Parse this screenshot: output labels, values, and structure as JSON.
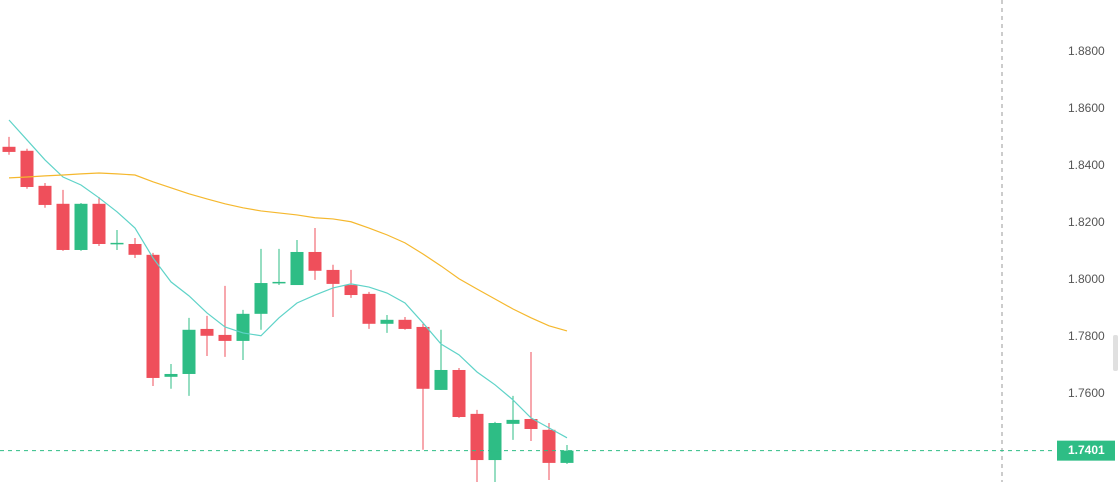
{
  "chart_data": {
    "type": "candlestick",
    "open": [
      1.8467,
      1.8453,
      1.833,
      1.8267,
      1.8105,
      1.8267,
      1.8126,
      1.8126,
      1.8088,
      1.766,
      1.767,
      1.7828,
      1.7807,
      1.7786,
      1.7881,
      1.7989,
      1.7982,
      1.8098,
      1.8035,
      1.7982,
      1.7951,
      1.7846,
      1.786,
      1.7835,
      1.7614,
      1.7684,
      1.753,
      1.7368,
      1.7495,
      1.7512,
      1.7474,
      1.7358
    ],
    "high": [
      1.8502,
      1.846,
      1.834,
      1.8316,
      1.827,
      1.8291,
      1.8175,
      1.8147,
      1.8095,
      1.7705,
      1.7867,
      1.7874,
      1.7979,
      1.7895,
      1.8109,
      1.8109,
      1.814,
      1.8182,
      1.8053,
      1.8035,
      1.7958,
      1.7877,
      1.787,
      1.7846,
      1.7825,
      1.7691,
      1.7544,
      1.7502,
      1.7593,
      1.7747,
      1.7498,
      1.7421
    ],
    "low": [
      1.8439,
      1.832,
      1.8253,
      1.8102,
      1.8102,
      1.8119,
      1.8105,
      1.8077,
      1.7628,
      1.7618,
      1.7593,
      1.7733,
      1.773,
      1.7719,
      1.7825,
      1.7982,
      1.7982,
      1.8,
      1.787,
      1.7937,
      1.7828,
      1.7814,
      1.7825,
      1.7404,
      1.7614,
      1.7516,
      1.7285,
      1.729,
      1.7439,
      1.7435,
      1.7298,
      1.7354
    ],
    "close": [
      1.8449,
      1.8326,
      1.8263,
      1.8105,
      1.8267,
      1.8126,
      1.813,
      1.8088,
      1.7656,
      1.767,
      1.7825,
      1.7804,
      1.7786,
      1.7881,
      1.7989,
      1.7993,
      1.8098,
      1.8032,
      1.7986,
      1.7947,
      1.7846,
      1.786,
      1.7828,
      1.7618,
      1.7684,
      1.7519,
      1.7368,
      1.7498,
      1.7509,
      1.7477,
      1.7358,
      1.7401
    ],
    "up_color": "#2ebd85",
    "down_color": "#ef4f5b",
    "lines": [
      {
        "color": "#5fd3c8",
        "values": [
          1.8561,
          1.8491,
          1.8421,
          1.8361,
          1.8333,
          1.8288,
          1.8239,
          1.8182,
          1.8077,
          1.7993,
          1.7944,
          1.7884,
          1.7835,
          1.7814,
          1.7804,
          1.7867,
          1.7919,
          1.7947,
          1.7972,
          1.7986,
          1.7975,
          1.7954,
          1.7919,
          1.7849,
          1.7775,
          1.7737,
          1.7677,
          1.7632,
          1.7579,
          1.7516,
          1.7481,
          1.7446
        ]
      },
      {
        "color": "#f5b82e",
        "values": [
          1.8358,
          1.8361,
          1.8365,
          1.8368,
          1.8372,
          1.8375,
          1.8372,
          1.8368,
          1.8344,
          1.8323,
          1.8302,
          1.8284,
          1.8267,
          1.8253,
          1.8242,
          1.8235,
          1.8228,
          1.8218,
          1.8214,
          1.8204,
          1.8182,
          1.8158,
          1.813,
          1.8091,
          1.8049,
          1.8004,
          1.7968,
          1.7933,
          1.7898,
          1.7867,
          1.7839,
          1.7821
        ]
      }
    ],
    "ylim": [
      1.7291,
      1.8982
    ],
    "yticks": [
      {
        "value": 1.76,
        "label": "1.7600"
      },
      {
        "value": 1.78,
        "label": "1.7800"
      },
      {
        "value": 1.8,
        "label": "1.8000"
      },
      {
        "value": 1.82,
        "label": "1.8200"
      },
      {
        "value": 1.84,
        "label": "1.8400"
      },
      {
        "value": 1.86,
        "label": "1.8600"
      },
      {
        "value": 1.88,
        "label": "1.8800"
      }
    ],
    "last_price": 1.7401,
    "low_annotation": 1.7285
  }
}
